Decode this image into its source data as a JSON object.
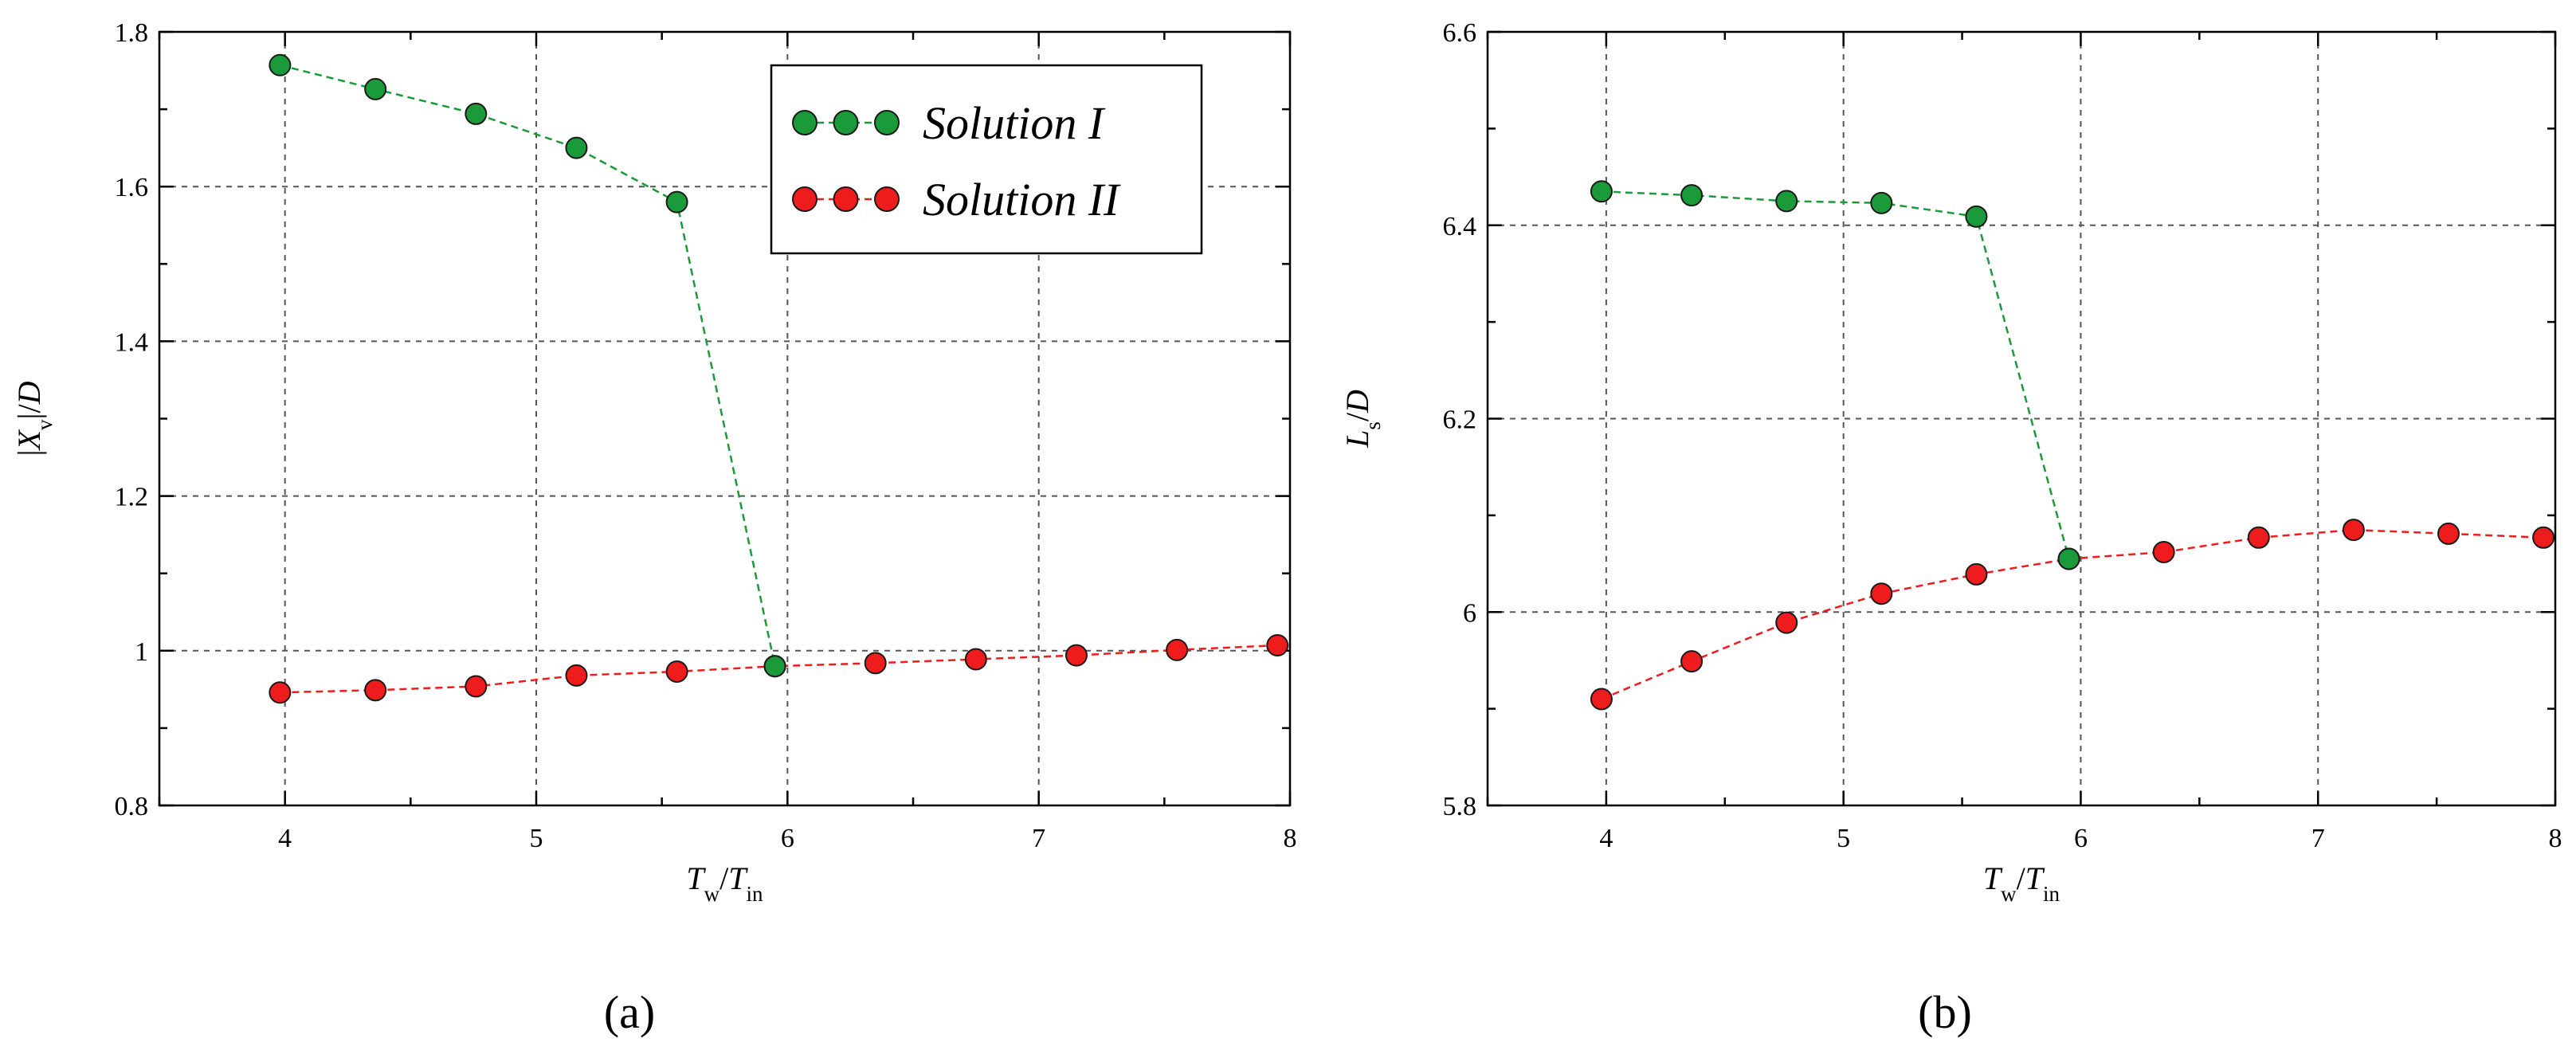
{
  "figure": {
    "panel_labels": [
      "(a)",
      "(b)"
    ]
  },
  "colors": {
    "solution_1": "#1b9a3a",
    "solution_2": "#ee1c1c",
    "grid": "#555555",
    "axis": "#000000"
  },
  "chart_data": [
    {
      "type": "line",
      "panel": "a",
      "panel_label": "(a)",
      "xlabel": "Tw/Tin",
      "ylabel": "|Xv|/D",
      "xlim": [
        3.5,
        8
      ],
      "ylim": [
        0.8,
        1.8
      ],
      "xticks": [
        "4",
        "5",
        "6",
        "7",
        "8"
      ],
      "yticks": [
        "0.8",
        "1",
        "1.2",
        "1.4",
        "1.6",
        "1.8"
      ],
      "grid": true,
      "legend": "top-right",
      "series": [
        {
          "name": "Solution I",
          "x": [
            3.98,
            4.36,
            4.76,
            5.16,
            5.56,
            5.95
          ],
          "y": [
            1.757,
            1.726,
            1.694,
            1.65,
            1.58,
            0.98
          ]
        },
        {
          "name": "Solution II",
          "x": [
            3.98,
            4.36,
            4.76,
            5.16,
            5.56,
            5.95,
            6.35,
            6.75,
            7.15,
            7.55,
            7.95
          ],
          "y": [
            0.946,
            0.949,
            0.954,
            0.968,
            0.973,
            0.98,
            0.984,
            0.989,
            0.994,
            1.001,
            1.007
          ]
        }
      ]
    },
    {
      "type": "line",
      "panel": "b",
      "panel_label": "(b)",
      "xlabel": "Tw/Tin",
      "ylabel": "Ls/D",
      "xlim": [
        3.5,
        8
      ],
      "ylim": [
        5.8,
        6.6
      ],
      "xticks": [
        "4",
        "5",
        "6",
        "7",
        "8"
      ],
      "yticks": [
        "5.8",
        "6",
        "6.2",
        "6.4",
        "6.6"
      ],
      "grid": true,
      "series": [
        {
          "name": "Solution I",
          "x": [
            3.98,
            4.36,
            4.76,
            5.16,
            5.56,
            5.95
          ],
          "y": [
            6.435,
            6.431,
            6.425,
            6.423,
            6.409,
            6.055
          ]
        },
        {
          "name": "Solution II",
          "x": [
            3.98,
            4.36,
            4.76,
            5.16,
            5.56,
            5.95,
            6.35,
            6.75,
            7.15,
            7.55,
            7.95
          ],
          "y": [
            5.91,
            5.949,
            5.989,
            6.019,
            6.039,
            6.055,
            6.062,
            6.077,
            6.085,
            6.081,
            6.077
          ]
        }
      ]
    }
  ]
}
